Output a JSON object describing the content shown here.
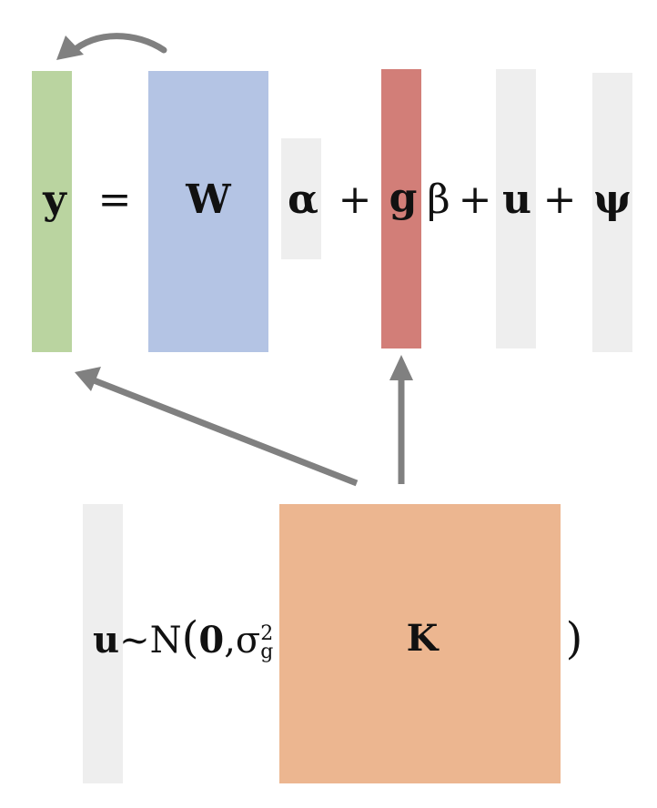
{
  "equation": {
    "response": "y",
    "equals": "=",
    "design_matrix": "W",
    "fixed_effects": "α",
    "plus_1": "+",
    "genotype": "g",
    "snp_effect": "β",
    "plus_2": "+",
    "random_effect": "u",
    "plus_3": "+",
    "residual": "ψ"
  },
  "distribution": {
    "variable": "u",
    "tilde": "~",
    "normal": "N",
    "open_paren": "(",
    "mean": "0",
    "comma": ",",
    "sigma": "σ",
    "sigma_sup": "2",
    "sigma_sub": "g",
    "kinship": "K",
    "close_paren": ")"
  },
  "colors": {
    "y_block": "#bad4a0",
    "w_block": "#b4c4e4",
    "g_block": "#d27e78",
    "k_block": "#ecb690",
    "gray_block": "#eeeeee",
    "arrow": "#808080"
  }
}
